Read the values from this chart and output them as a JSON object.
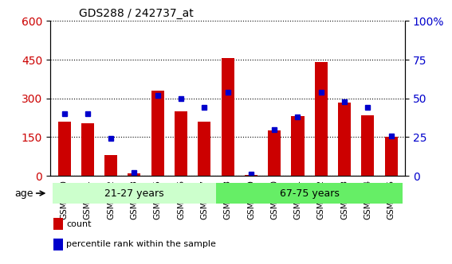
{
  "title": "GDS288 / 242737_at",
  "samples": [
    "GSM5300",
    "GSM5301",
    "GSM5302",
    "GSM5303",
    "GSM5305",
    "GSM5306",
    "GSM5307",
    "GSM5308",
    "GSM5309",
    "GSM5310",
    "GSM5311",
    "GSM5312",
    "GSM5313",
    "GSM5314",
    "GSM5315"
  ],
  "counts": [
    210,
    205,
    80,
    10,
    330,
    250,
    210,
    455,
    5,
    175,
    230,
    440,
    285,
    235,
    150
  ],
  "percentiles": [
    40,
    40,
    24,
    2,
    52,
    50,
    44,
    54,
    1,
    30,
    38,
    54,
    48,
    44,
    26
  ],
  "group1_label": "21-27 years",
  "group2_label": "67-75 years",
  "group1_indices": [
    0,
    1,
    2,
    3,
    4,
    5,
    6
  ],
  "group2_indices": [
    7,
    8,
    9,
    10,
    11,
    12,
    13,
    14
  ],
  "bar_color": "#cc0000",
  "dot_color": "#0000cc",
  "group1_color": "#ccffcc",
  "group2_color": "#66ee66",
  "left_ylim": [
    0,
    600
  ],
  "right_ylim": [
    0,
    100
  ],
  "left_yticks": [
    0,
    150,
    300,
    450,
    600
  ],
  "right_yticks": [
    0,
    25,
    50,
    75,
    100
  ],
  "right_yticklabels": [
    "0",
    "25",
    "50",
    "75",
    "100%"
  ],
  "age_label": "age",
  "legend_count": "count",
  "legend_pct": "percentile rank within the sample",
  "bg_color": "#e8e8e8",
  "plot_bg": "#ffffff"
}
